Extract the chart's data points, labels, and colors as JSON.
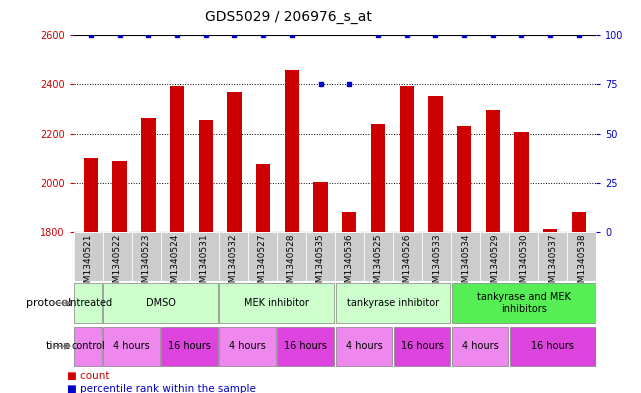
{
  "title": "GDS5029 / 206976_s_at",
  "samples": [
    "GSM1340521",
    "GSM1340522",
    "GSM1340523",
    "GSM1340524",
    "GSM1340531",
    "GSM1340532",
    "GSM1340527",
    "GSM1340528",
    "GSM1340535",
    "GSM1340536",
    "GSM1340525",
    "GSM1340526",
    "GSM1340533",
    "GSM1340534",
    "GSM1340529",
    "GSM1340530",
    "GSM1340537",
    "GSM1340538"
  ],
  "counts": [
    2100,
    2090,
    2265,
    2395,
    2255,
    2370,
    2075,
    2460,
    2005,
    1880,
    2240,
    2395,
    2355,
    2230,
    2295,
    2205,
    1810,
    1880
  ],
  "percentiles": [
    100,
    100,
    100,
    100,
    100,
    100,
    100,
    100,
    75,
    75,
    100,
    100,
    100,
    100,
    100,
    100,
    100,
    100
  ],
  "bar_color": "#cc0000",
  "dot_color": "#0000cc",
  "ylim_left": [
    1800,
    2600
  ],
  "ylim_right": [
    0,
    100
  ],
  "yticks_left": [
    1800,
    2000,
    2200,
    2400,
    2600
  ],
  "yticks_right": [
    0,
    25,
    50,
    75,
    100
  ],
  "gridlines": [
    2000,
    2200,
    2400
  ],
  "protocol_groups": [
    {
      "label": "untreated",
      "start": 0,
      "end": 1,
      "color": "#ccffcc"
    },
    {
      "label": "DMSO",
      "start": 1,
      "end": 5,
      "color": "#ccffcc"
    },
    {
      "label": "MEK inhibitor",
      "start": 5,
      "end": 9,
      "color": "#ccffcc"
    },
    {
      "label": "tankyrase inhibitor",
      "start": 9,
      "end": 13,
      "color": "#ccffcc"
    },
    {
      "label": "tankyrase and MEK\ninhibitors",
      "start": 13,
      "end": 18,
      "color": "#55ee55"
    }
  ],
  "time_groups": [
    {
      "label": "control",
      "start": 0,
      "end": 1,
      "color": "#ee88ee"
    },
    {
      "label": "4 hours",
      "start": 1,
      "end": 3,
      "color": "#ee88ee"
    },
    {
      "label": "16 hours",
      "start": 3,
      "end": 5,
      "color": "#dd44dd"
    },
    {
      "label": "4 hours",
      "start": 5,
      "end": 7,
      "color": "#ee88ee"
    },
    {
      "label": "16 hours",
      "start": 7,
      "end": 9,
      "color": "#dd44dd"
    },
    {
      "label": "4 hours",
      "start": 9,
      "end": 11,
      "color": "#ee88ee"
    },
    {
      "label": "16 hours",
      "start": 11,
      "end": 13,
      "color": "#dd44dd"
    },
    {
      "label": "4 hours",
      "start": 13,
      "end": 15,
      "color": "#ee88ee"
    },
    {
      "label": "16 hours",
      "start": 15,
      "end": 18,
      "color": "#dd44dd"
    }
  ],
  "sample_bg_color": "#cccccc",
  "legend_count_label": "count",
  "legend_percentile_label": "percentile rank within the sample",
  "bar_color_hex": "#cc0000",
  "dot_color_hex": "#0000cc",
  "left_axis_color": "#cc0000",
  "right_axis_color": "#0000cc",
  "title_fontsize": 10,
  "tick_fontsize": 7,
  "label_fontsize": 7,
  "row_label_fontsize": 8
}
